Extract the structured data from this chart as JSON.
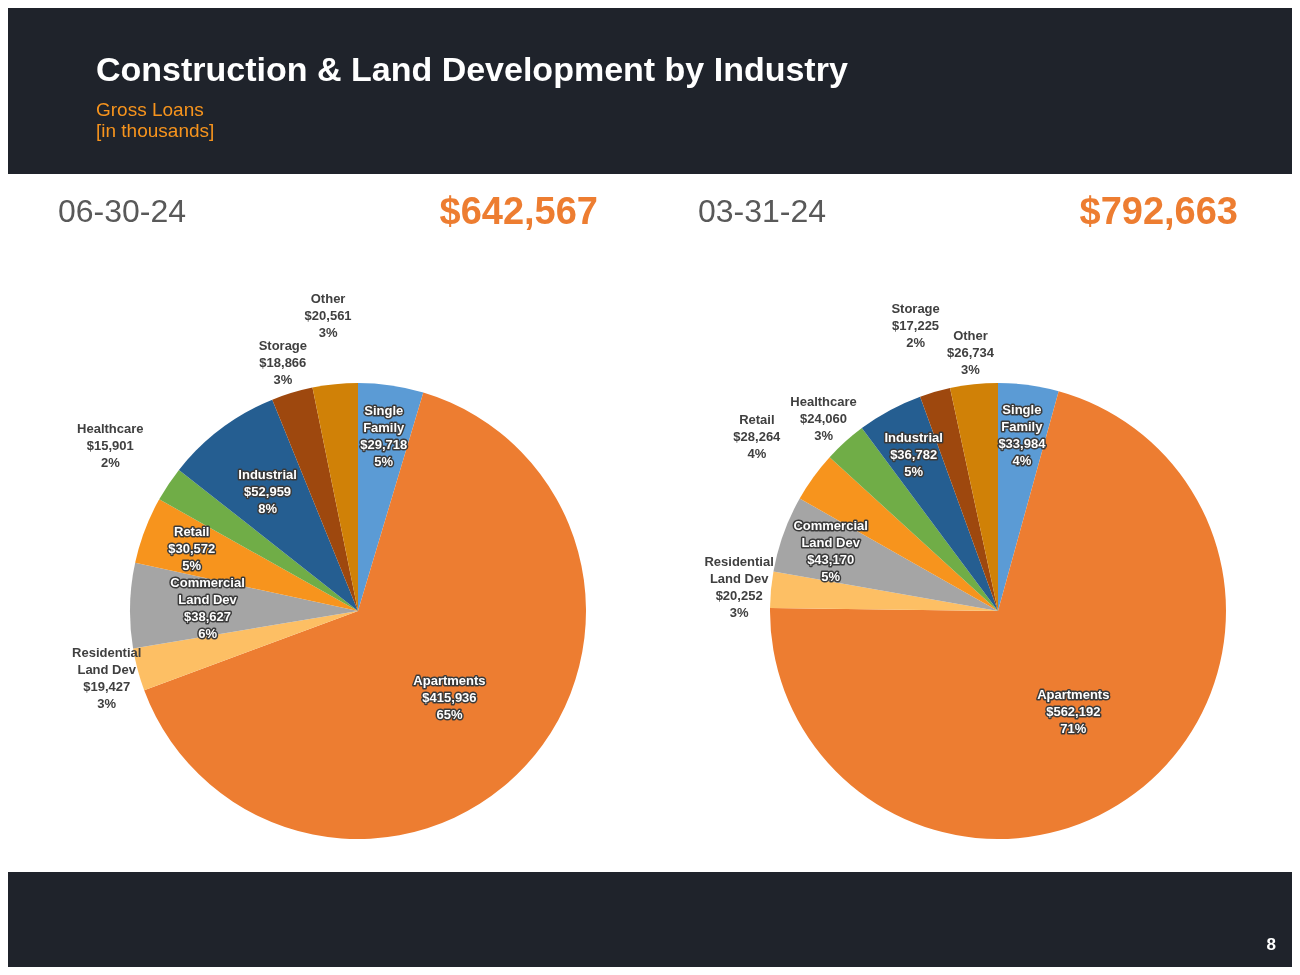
{
  "chart_data": [
    {
      "type": "pie",
      "title": "Construction & Land Development by Industry",
      "subtitle": "Gross Loans\n[in thousands]",
      "annotations": [
        "06-30-24",
        "$642,567"
      ],
      "categories": [
        "Single Family",
        "Apartments",
        "Residential Land Dev",
        "Commercial Land Dev",
        "Retail",
        "Healthcare",
        "Industrial",
        "Storage",
        "Other"
      ],
      "values": [
        29718,
        415936,
        19427,
        38627,
        30572,
        15901,
        52959,
        18866,
        20561
      ],
      "value_labels": [
        "$29,718\n5%",
        "$415,936\n65%",
        "$19,427\n3%",
        "$38,627\n6%",
        "$30,572\n5%",
        "$15,901\n2%",
        "$52,959\n8%",
        "$18,866\n3%",
        "$20,561\n3%"
      ],
      "colors": [
        "#5b9bd5",
        "#ed7d31",
        "#fdbf64",
        "#a5a5a5",
        "#f7941d",
        "#70ad47",
        "#255e91",
        "#9e480e",
        "#d08107"
      ]
    },
    {
      "type": "pie",
      "annotations": [
        "03-31-24",
        "$792,663",
        "8"
      ],
      "categories": [
        "Single Family",
        "Apartments",
        "Residential Land Dev",
        "Commercial Land Dev",
        "Retail",
        "Healthcare",
        "Industrial",
        "Storage",
        "Other"
      ],
      "values": [
        33984,
        562192,
        20252,
        43170,
        28264,
        24060,
        36782,
        17225,
        26734
      ],
      "value_labels": [
        "$33,984\n4%",
        "$562,192\n71%",
        "$20,252\n3%",
        "$43,170\n5%",
        "$28,264\n4%",
        "$24,060\n3%",
        "$36,782\n5%",
        "$17,225\n2%",
        "$26,734\n3%"
      ],
      "colors": [
        "#5b9bd5",
        "#ed7d31",
        "#fdbf64",
        "#a5a5a5",
        "#f7941d",
        "#70ad47",
        "#255e91",
        "#9e480e",
        "#d08107"
      ]
    }
  ]
}
